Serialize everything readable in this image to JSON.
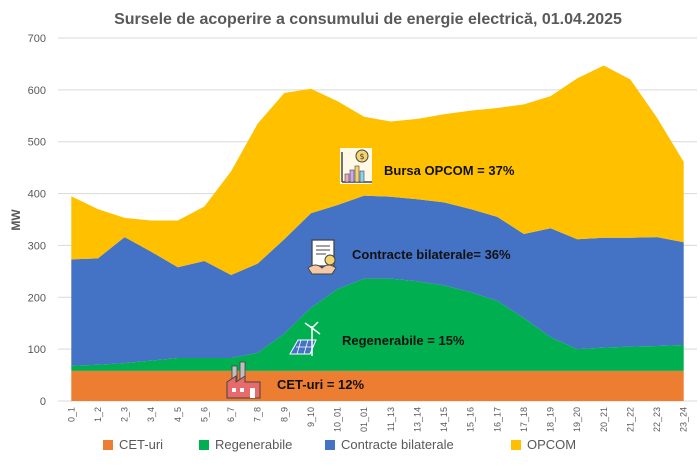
{
  "chart_data": {
    "type": "area",
    "stacked": true,
    "title": "Sursele de acoperire a consumului de energie electrică, 01.04.2025",
    "xlabel": "",
    "ylabel": "MW",
    "ylim": [
      0,
      700
    ],
    "yticks": [
      0,
      100,
      200,
      300,
      400,
      500,
      600,
      700
    ],
    "grid": true,
    "legend_position": "bottom",
    "categories": [
      "0_1",
      "1_2",
      "2_3",
      "3_4",
      "4_5",
      "5_6",
      "6_7",
      "7_8",
      "8_9",
      "9_10",
      "10_01",
      "01_01",
      "11_13",
      "13_14",
      "14_15",
      "15_16",
      "16_17",
      "17_18",
      "18_19",
      "19_20",
      "20_21",
      "21_22",
      "22_23",
      "23_24"
    ],
    "series": [
      {
        "name": "CET-uri",
        "color": "#ED7D31",
        "values": [
          58,
          58,
          58,
          58,
          58,
          58,
          58,
          58,
          58,
          58,
          58,
          58,
          58,
          58,
          58,
          58,
          58,
          58,
          58,
          58,
          58,
          58,
          58,
          58
        ]
      },
      {
        "name": "Regenerabile",
        "color": "#00B050",
        "values": [
          10,
          12,
          15,
          20,
          25,
          25,
          25,
          35,
          72,
          122,
          158,
          178,
          178,
          173,
          165,
          152,
          135,
          102,
          65,
          42,
          45,
          47,
          48,
          50
        ]
      },
      {
        "name": "Contracte bilaterale",
        "color": "#4472C4",
        "values": [
          205,
          205,
          243,
          210,
          175,
          187,
          160,
          172,
          182,
          182,
          162,
          160,
          158,
          158,
          160,
          160,
          162,
          162,
          210,
          212,
          212,
          210,
          210,
          198
        ]
      },
      {
        "name": "OPCOM",
        "color": "#FFC000",
        "values": [
          122,
          95,
          37,
          60,
          90,
          105,
          200,
          270,
          282,
          240,
          200,
          152,
          145,
          155,
          170,
          190,
          210,
          250,
          255,
          310,
          332,
          305,
          230,
          155
        ]
      }
    ],
    "annotations": [
      {
        "label": "Bursa OPCOM = 37%",
        "icon": "chart-bars-icon"
      },
      {
        "label": "Contracte bilaterale= 36%",
        "icon": "contract-handshake-icon"
      },
      {
        "label": "Regenerabile = 15%",
        "icon": "solar-wind-icon"
      },
      {
        "label": "CET-uri = 12%",
        "icon": "factory-icon"
      }
    ]
  }
}
